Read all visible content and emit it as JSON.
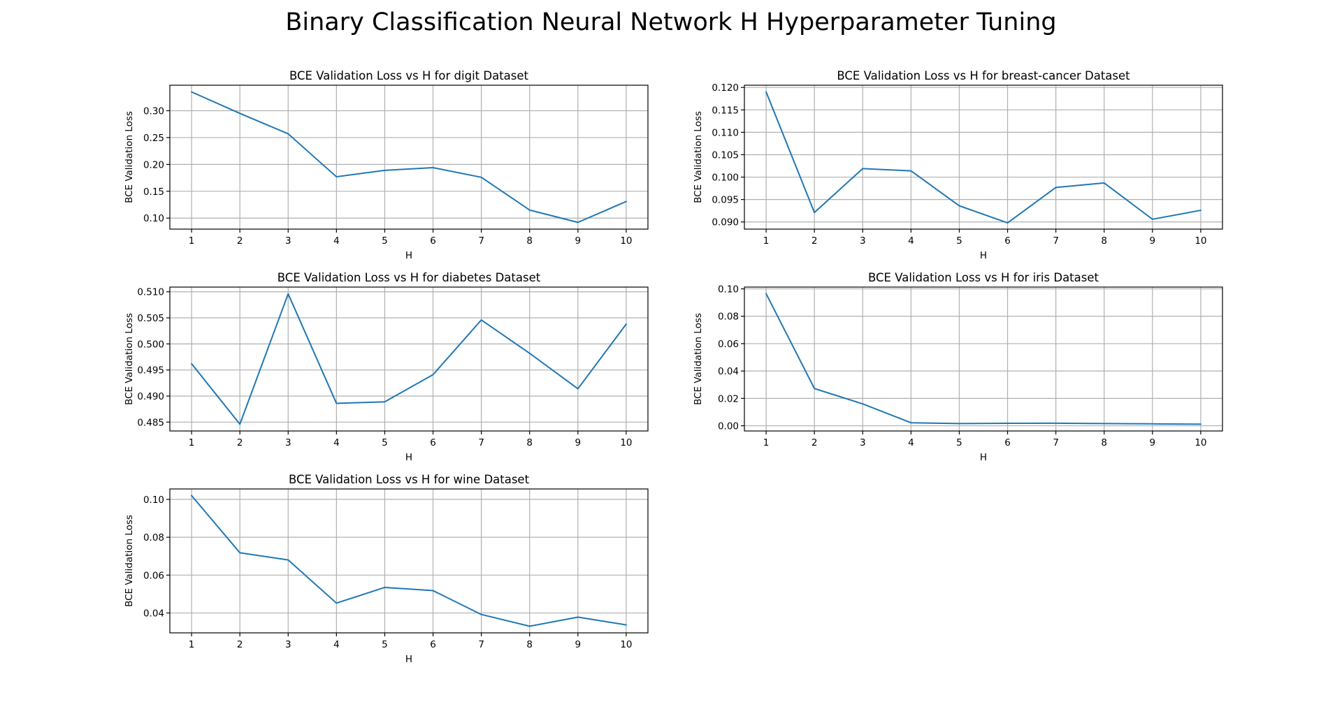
{
  "figure": {
    "title": "Binary Classification Neural Network H Hyperparameter Tuning"
  },
  "chart_data": [
    {
      "type": "line",
      "title": "BCE Validation Loss vs H for digit Dataset",
      "xlabel": "H",
      "ylabel": "BCE Validation Loss",
      "x": [
        1,
        2,
        3,
        4,
        5,
        6,
        7,
        8,
        9,
        10
      ],
      "values": [
        0.335,
        0.295,
        0.257,
        0.177,
        0.189,
        0.194,
        0.176,
        0.115,
        0.092,
        0.131
      ],
      "xlim": [
        0.55,
        10.45
      ],
      "ylim": [
        0.0795,
        0.3475
      ],
      "xticks": [
        1,
        2,
        3,
        4,
        5,
        6,
        7,
        8,
        9,
        10
      ],
      "yticks": [
        0.1,
        0.15,
        0.2,
        0.25,
        0.3
      ],
      "ytick_labels": [
        "0.10",
        "0.15",
        "0.20",
        "0.25",
        "0.30"
      ],
      "grid": true,
      "color": "#1f77b4"
    },
    {
      "type": "line",
      "title": "BCE Validation Loss vs H for breast-cancer Dataset",
      "xlabel": "H",
      "ylabel": "BCE Validation Loss",
      "x": [
        1,
        2,
        3,
        4,
        5,
        6,
        7,
        8,
        9,
        10
      ],
      "values": [
        0.119,
        0.0921,
        0.1019,
        0.1014,
        0.0936,
        0.0898,
        0.0977,
        0.0987,
        0.0906,
        0.0926
      ],
      "xlim": [
        0.55,
        10.45
      ],
      "ylim": [
        0.0884,
        0.1205
      ],
      "xticks": [
        1,
        2,
        3,
        4,
        5,
        6,
        7,
        8,
        9,
        10
      ],
      "yticks": [
        0.09,
        0.095,
        0.1,
        0.105,
        0.11,
        0.115,
        0.12
      ],
      "ytick_labels": [
        "0.090",
        "0.095",
        "0.100",
        "0.105",
        "0.110",
        "0.115",
        "0.120"
      ],
      "grid": true,
      "color": "#1f77b4"
    },
    {
      "type": "line",
      "title": "BCE Validation Loss vs H for diabetes Dataset",
      "xlabel": "H",
      "ylabel": "BCE Validation Loss",
      "x": [
        1,
        2,
        3,
        4,
        5,
        6,
        7,
        8,
        9,
        10
      ],
      "values": [
        0.4962,
        0.4846,
        0.5096,
        0.4886,
        0.4889,
        0.4941,
        0.5046,
        0.4982,
        0.4914,
        0.5038
      ],
      "xlim": [
        0.55,
        10.45
      ],
      "ylim": [
        0.4833,
        0.5109
      ],
      "xticks": [
        1,
        2,
        3,
        4,
        5,
        6,
        7,
        8,
        9,
        10
      ],
      "yticks": [
        0.485,
        0.49,
        0.495,
        0.5,
        0.505,
        0.51
      ],
      "ytick_labels": [
        "0.485",
        "0.490",
        "0.495",
        "0.500",
        "0.505",
        "0.510"
      ],
      "grid": true,
      "color": "#1f77b4"
    },
    {
      "type": "line",
      "title": "BCE Validation Loss vs H for iris Dataset",
      "xlabel": "H",
      "ylabel": "BCE Validation Loss",
      "x": [
        1,
        2,
        3,
        4,
        5,
        6,
        7,
        8,
        9,
        10
      ],
      "values": [
        0.0965,
        0.0272,
        0.016,
        0.0022,
        0.0016,
        0.0018,
        0.0019,
        0.0016,
        0.0014,
        0.0012
      ],
      "xlim": [
        0.55,
        10.45
      ],
      "ylim": [
        -0.0038,
        0.1013
      ],
      "xticks": [
        1,
        2,
        3,
        4,
        5,
        6,
        7,
        8,
        9,
        10
      ],
      "yticks": [
        0.0,
        0.02,
        0.04,
        0.06,
        0.08,
        0.1
      ],
      "ytick_labels": [
        "0.00",
        "0.02",
        "0.04",
        "0.06",
        "0.08",
        "0.10"
      ],
      "grid": true,
      "color": "#1f77b4"
    },
    {
      "type": "line",
      "title": "BCE Validation Loss vs H for wine Dataset",
      "xlabel": "H",
      "ylabel": "BCE Validation Loss",
      "x": [
        1,
        2,
        3,
        4,
        5,
        6,
        7,
        8,
        9,
        10
      ],
      "values": [
        0.102,
        0.0718,
        0.068,
        0.0452,
        0.0535,
        0.0518,
        0.0392,
        0.033,
        0.0378,
        0.0337
      ],
      "xlim": [
        0.55,
        10.45
      ],
      "ylim": [
        0.0295,
        0.1055
      ],
      "xticks": [
        1,
        2,
        3,
        4,
        5,
        6,
        7,
        8,
        9,
        10
      ],
      "yticks": [
        0.04,
        0.06,
        0.08,
        0.1
      ],
      "ytick_labels": [
        "0.04",
        "0.06",
        "0.08",
        "0.10"
      ],
      "grid": true,
      "color": "#1f77b4"
    }
  ]
}
